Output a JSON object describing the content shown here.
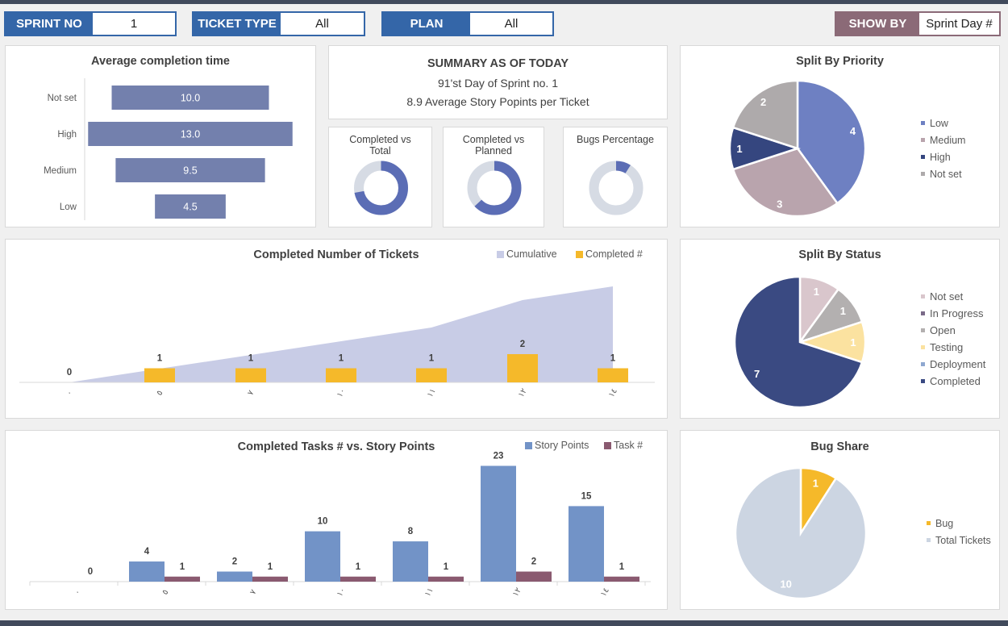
{
  "filters": {
    "sprint": {
      "label": "SPRINT NO",
      "value": "1"
    },
    "ticket_type": {
      "label": "TICKET TYPE",
      "value": "All"
    },
    "plan": {
      "label": "PLAN",
      "value": "All"
    },
    "show_by": {
      "label": "SHOW BY",
      "value": "Sprint Day #"
    }
  },
  "summary": {
    "title": "SUMMARY AS OF TODAY",
    "line1": "91'st Day of Sprint no. 1",
    "line2": "8.9 Average  Story Popints per Ticket"
  },
  "colors": {
    "accent_blue": "#3466a8",
    "showby_mauve": "#8b6a77",
    "bar_purple": "#7380ad",
    "gold": "#f5b92a",
    "area": "#c8cce6",
    "story_blue": "#7293c7",
    "task_plum": "#8a5a70",
    "navy": "#3a4a82",
    "donut_gray": "#d6dbe4",
    "donut_blue": "#5b6db5"
  },
  "chart_data": [
    {
      "type": "bar",
      "orientation": "horizontal",
      "title": "Average completion time",
      "categories": [
        "Not set",
        "High",
        "Medium",
        "Low"
      ],
      "values": [
        10.0,
        13.0,
        9.5,
        4.5
      ],
      "value_labels": [
        "10.0",
        "13.0",
        "9.5",
        "4.5"
      ]
    },
    {
      "type": "pie",
      "donut": true,
      "title": "Completed vs Total",
      "values": [
        0.72,
        0.28
      ]
    },
    {
      "type": "pie",
      "donut": true,
      "title": "Completed vs Planned",
      "values": [
        0.63,
        0.37
      ]
    },
    {
      "type": "pie",
      "donut": true,
      "title": "Bugs Percentage",
      "values": [
        0.09,
        0.91
      ]
    },
    {
      "type": "pie",
      "title": "Split By Priority",
      "labels": [
        "Low",
        "Medium",
        "High",
        "Not set"
      ],
      "values": [
        4,
        3,
        1,
        2
      ],
      "colors": [
        "#6e80c2",
        "#b9a4ad",
        "#35467f",
        "#aeaaab"
      ],
      "legend": "right"
    },
    {
      "type": "area",
      "title": "Completed Number of Tickets",
      "categories": [
        "٠",
        "٥",
        "٧",
        "١٠",
        "١١",
        "١٢",
        "١٤"
      ],
      "series": [
        {
          "name": "Cumulative",
          "type": "area",
          "values": [
            0,
            1,
            2,
            3,
            4,
            6,
            7
          ]
        },
        {
          "name": "Completed #",
          "type": "bar",
          "values": [
            0,
            1,
            1,
            1,
            1,
            2,
            1
          ]
        }
      ],
      "legend": "top-right"
    },
    {
      "type": "bar",
      "title": "Completed Tasks # vs. Story Points",
      "categories": [
        "٠",
        "٥",
        "٧",
        "١٠",
        "١١",
        "١٢",
        "١٤"
      ],
      "series": [
        {
          "name": "Story Points",
          "values": [
            0,
            4,
            2,
            10,
            8,
            23,
            15
          ]
        },
        {
          "name": "Task #",
          "values": [
            0,
            1,
            1,
            1,
            1,
            2,
            1
          ]
        }
      ],
      "legend": "top-right"
    },
    {
      "type": "pie",
      "title": "Split By Status",
      "labels": [
        "Not set",
        "In Progress",
        "Open",
        "Testing",
        "Deployment",
        "Completed"
      ],
      "values": [
        1,
        0,
        1,
        1,
        0,
        7
      ],
      "colors": [
        "#d9c6cc",
        "#7a6a88",
        "#b3b0b0",
        "#fbe2a0",
        "#8fa8d0",
        "#3a4a82"
      ],
      "legend": "right"
    },
    {
      "type": "pie",
      "title": "Bug Share",
      "labels": [
        "Bug",
        "Total Tickets"
      ],
      "values": [
        1,
        10
      ],
      "colors": [
        "#f5b92a",
        "#ccd5e2"
      ],
      "legend": "right"
    }
  ]
}
